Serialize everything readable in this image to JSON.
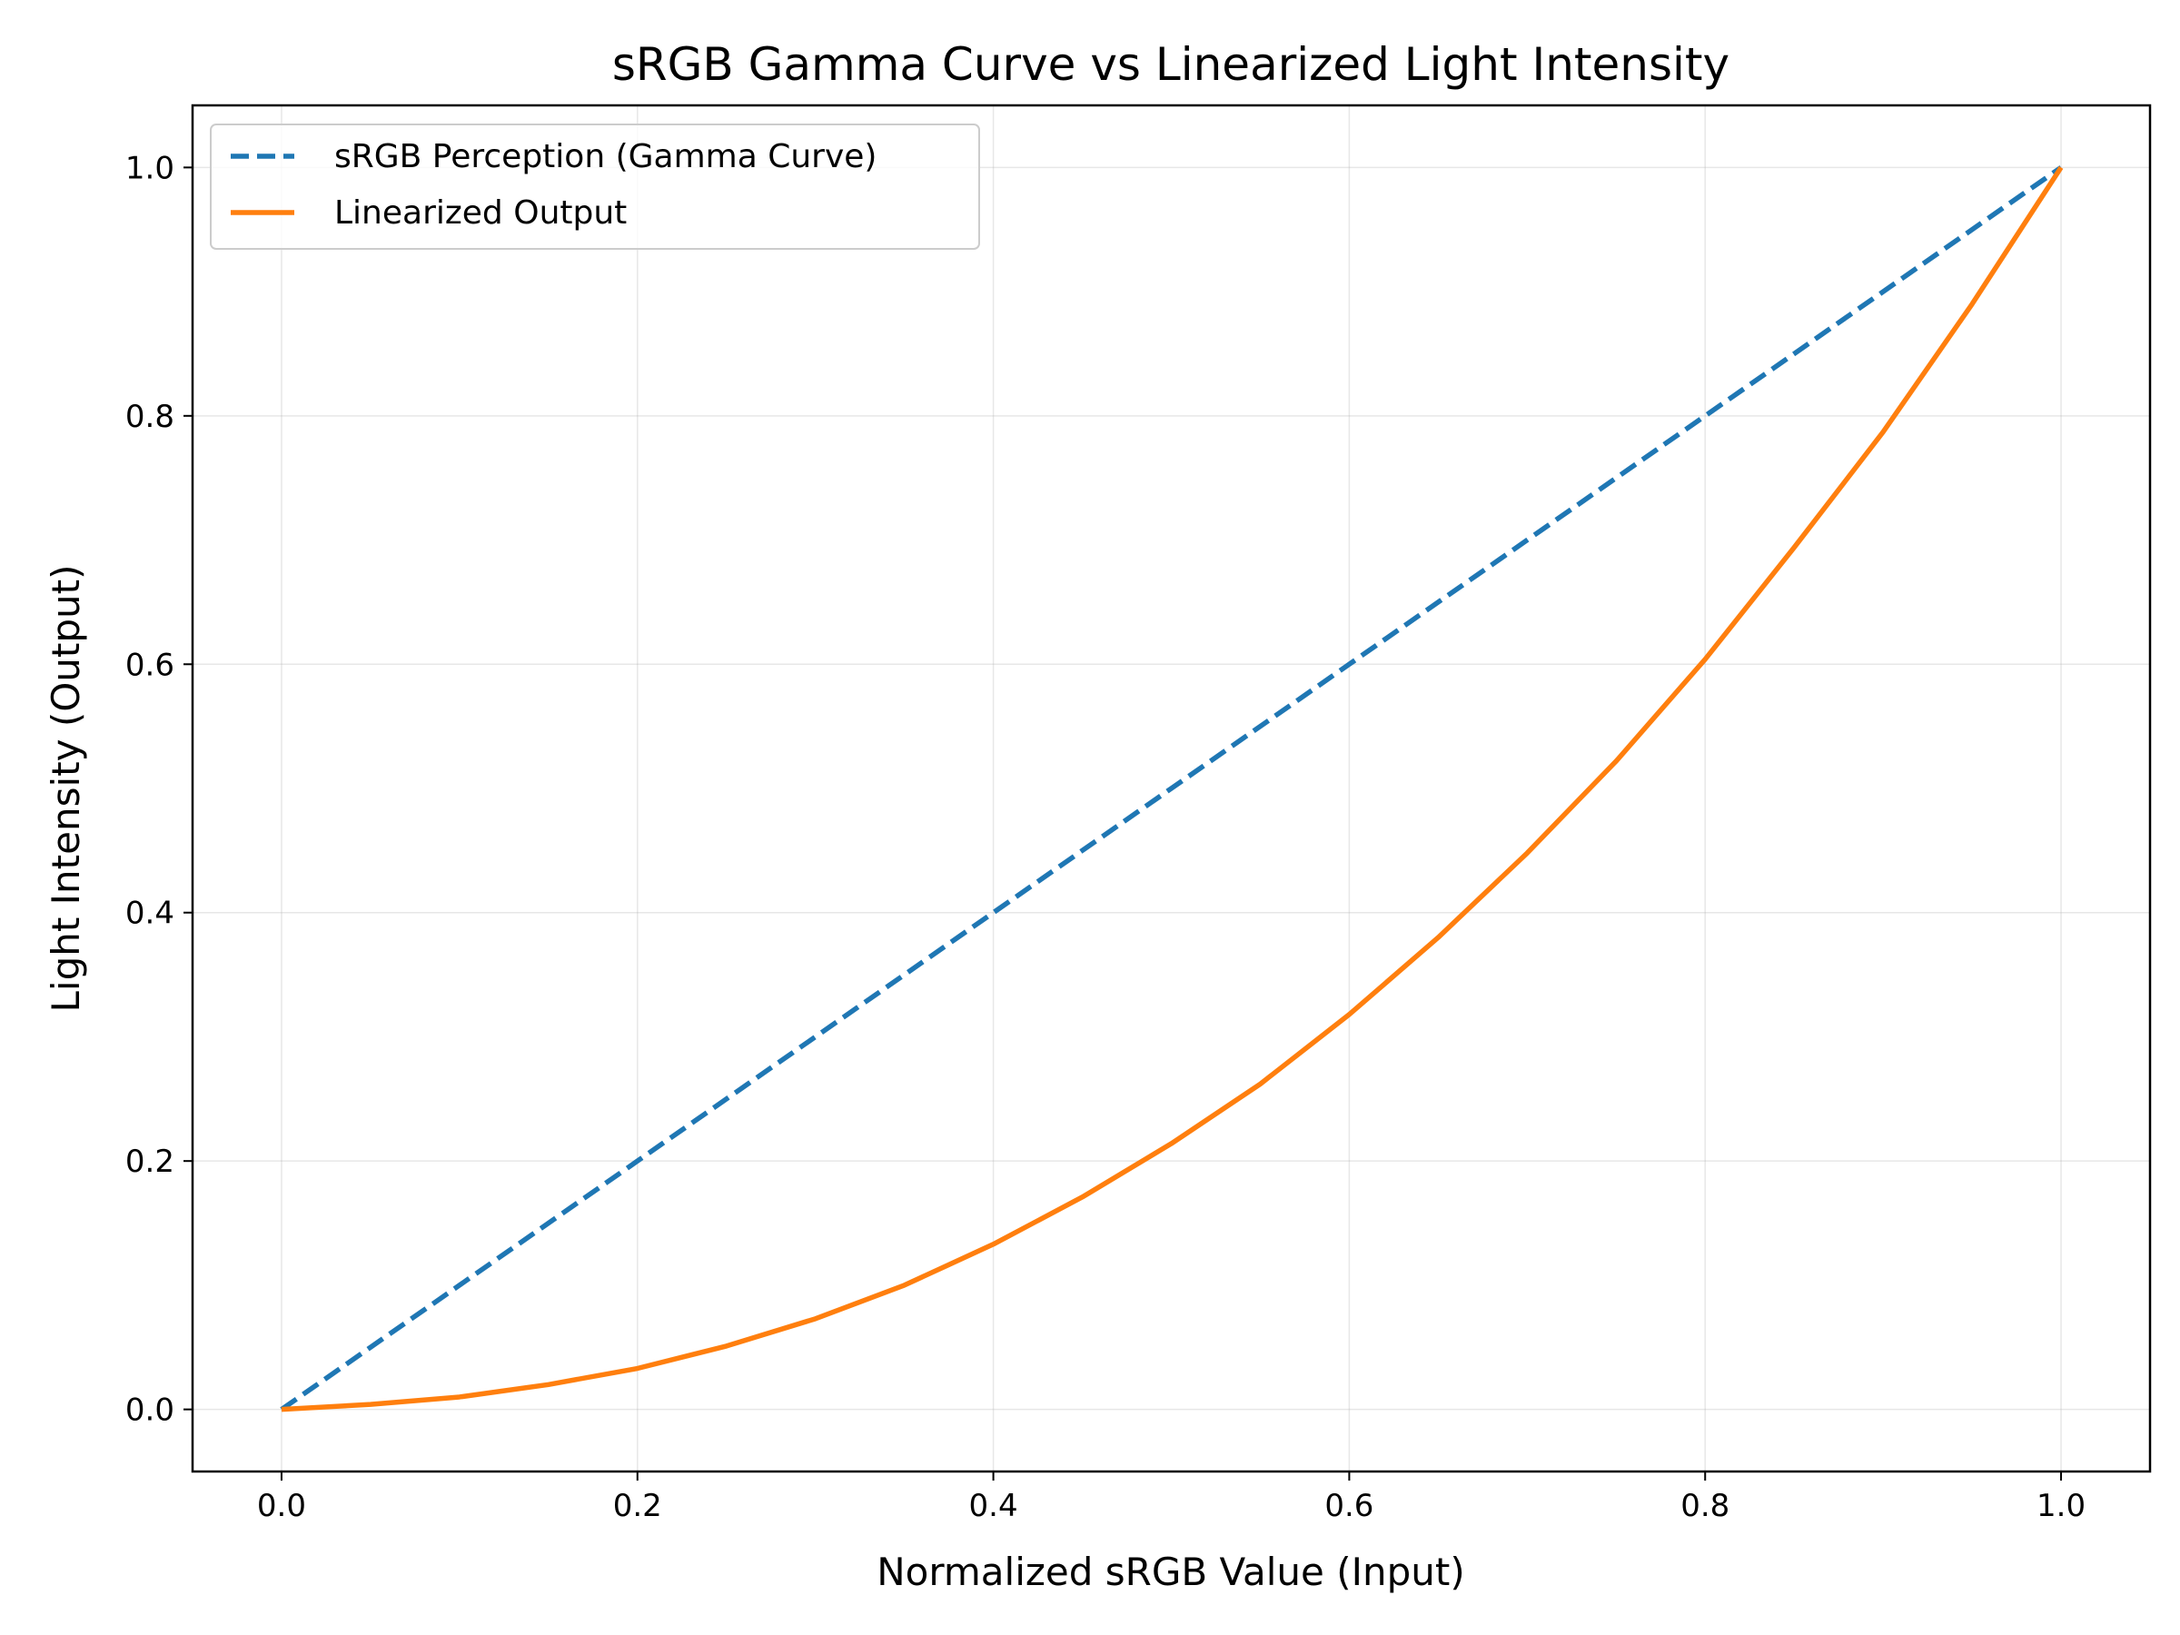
{
  "chart_data": {
    "type": "line",
    "title": "sRGB Gamma Curve vs Linearized Light Intensity",
    "xlabel": "Normalized sRGB Value (Input)",
    "ylabel": "Light Intensity (Output)",
    "xlim": [
      -0.05,
      1.05
    ],
    "ylim": [
      -0.05,
      1.05
    ],
    "xticks": [
      0.0,
      0.2,
      0.4,
      0.6,
      0.8,
      1.0
    ],
    "yticks": [
      0.0,
      0.2,
      0.4,
      0.6,
      0.8,
      1.0
    ],
    "xtick_labels": [
      "0.0",
      "0.2",
      "0.4",
      "0.6",
      "0.8",
      "1.0"
    ],
    "ytick_labels": [
      "0.0",
      "0.2",
      "0.4",
      "0.6",
      "0.8",
      "1.0"
    ],
    "grid": true,
    "legend_position": "upper-left",
    "series": [
      {
        "name": "sRGB Perception (Gamma Curve)",
        "color": "#1f77b4",
        "style": "dashed",
        "x": [
          0.0,
          0.1,
          0.2,
          0.3,
          0.4,
          0.5,
          0.6,
          0.7,
          0.8,
          0.9,
          1.0
        ],
        "y": [
          0.0,
          0.1,
          0.2,
          0.3,
          0.4,
          0.5,
          0.6,
          0.7,
          0.8,
          0.9,
          1.0
        ]
      },
      {
        "name": "Linearized Output",
        "color": "#ff7f0e",
        "style": "solid",
        "x": [
          0.0,
          0.05,
          0.1,
          0.15,
          0.2,
          0.25,
          0.3,
          0.35,
          0.4,
          0.45,
          0.5,
          0.55,
          0.6,
          0.65,
          0.7,
          0.75,
          0.8,
          0.85,
          0.9,
          0.95,
          1.0
        ],
        "y": [
          0.0,
          0.004,
          0.01,
          0.02,
          0.033,
          0.051,
          0.073,
          0.1,
          0.133,
          0.171,
          0.214,
          0.262,
          0.318,
          0.38,
          0.448,
          0.522,
          0.604,
          0.694,
          0.787,
          0.89,
          1.0
        ]
      }
    ]
  }
}
